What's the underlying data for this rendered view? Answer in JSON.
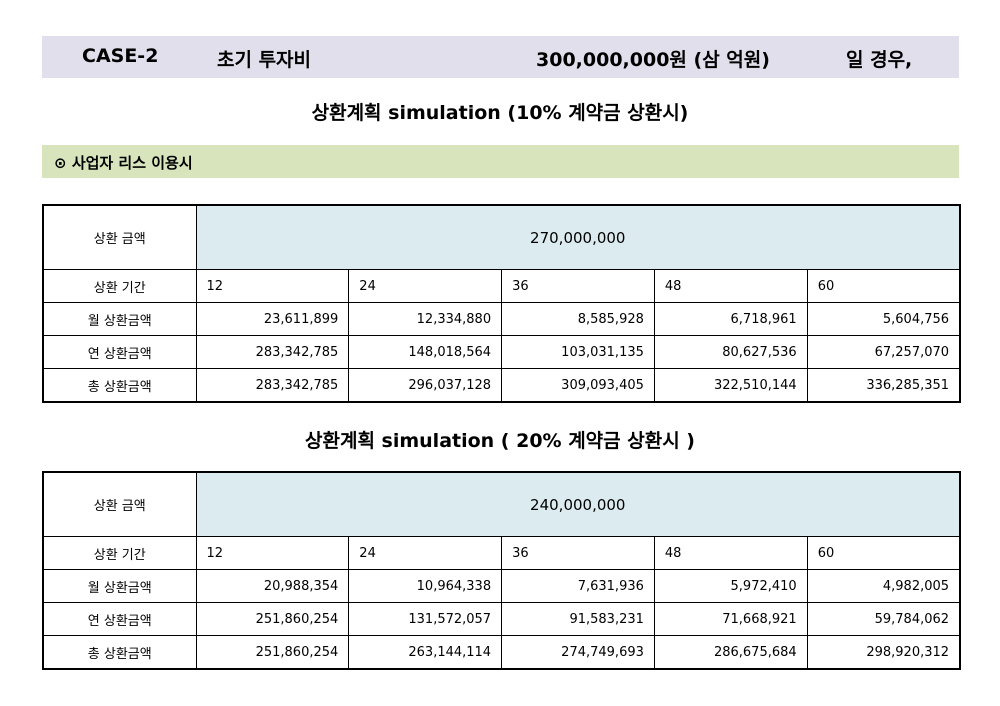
{
  "header": {
    "case": "CASE-2",
    "label": "초기 투자비",
    "amount": "300,000,000원 (삼 억원)",
    "suffix": "일 경우,"
  },
  "section": {
    "marker": "⊙",
    "title": "사업자 리스 이용시"
  },
  "row_labels": {
    "amount": "상환 금액",
    "period": "상환 기간",
    "monthly": "월 상환금액",
    "yearly": "연 상환금액",
    "total": "총 상환금액"
  },
  "periods": [
    "12",
    "24",
    "36",
    "48",
    "60"
  ],
  "plans": [
    {
      "title": "상환계획 simulation (10% 계약금 상환시)",
      "amount": "270,000,000",
      "monthly": [
        "23,611,899",
        "12,334,880",
        "8,585,928",
        "6,718,961",
        "5,604,756"
      ],
      "yearly": [
        "283,342,785",
        "148,018,564",
        "103,031,135",
        "80,627,536",
        "67,257,070"
      ],
      "total": [
        "283,342,785",
        "296,037,128",
        "309,093,405",
        "322,510,144",
        "336,285,351"
      ]
    },
    {
      "title": "상환계획 simulation ( 20% 계약금 상환시 )",
      "amount": "240,000,000",
      "monthly": [
        "20,988,354",
        "10,964,338",
        "7,631,936",
        "5,972,410",
        "4,982,005"
      ],
      "yearly": [
        "251,860,254",
        "131,572,057",
        "91,583,231",
        "71,668,921",
        "59,784,062"
      ],
      "total": [
        "251,860,254",
        "263,144,114",
        "274,749,693",
        "286,675,684",
        "298,920,312"
      ]
    }
  ]
}
